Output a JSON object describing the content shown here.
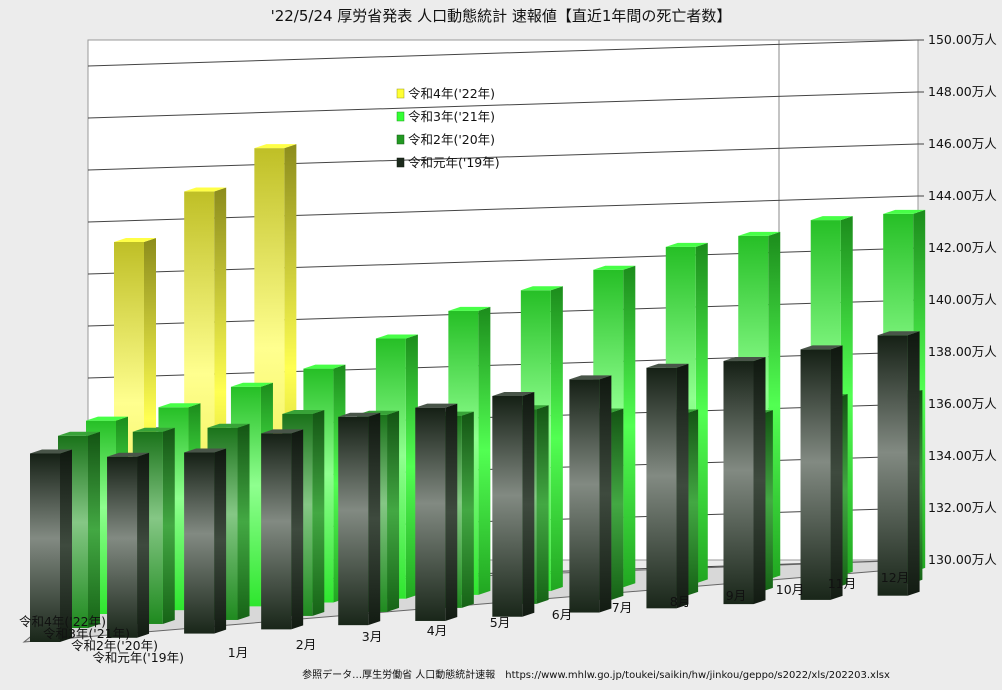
{
  "chart_data": {
    "type": "bar",
    "title": "'22/5/24 厚労省発表 人口動態統計 速報値【直近1年間の死亡者数】",
    "categories": [
      "1月",
      "2月",
      "3月",
      "4月",
      "5月",
      "6月",
      "7月",
      "8月",
      "9月",
      "10月",
      "11月",
      "12月"
    ],
    "y_tick_labels": [
      "130.00万人",
      "132.00万人",
      "134.00万人",
      "136.00万人",
      "138.00万人",
      "140.00万人",
      "142.00万人",
      "144.00万人",
      "146.00万人",
      "148.00万人",
      "150.00万人"
    ],
    "ylim": [
      130,
      150
    ],
    "y_unit": "万人",
    "grid": true,
    "legend_position": "top-center",
    "series": [
      {
        "name": "令和4年('22年)",
        "axis_label": "令和4年('22年)",
        "color": "#ffff33",
        "values": [
          145.3,
          147.3,
          149.0,
          null,
          null,
          null,
          null,
          null,
          null,
          null,
          null,
          null
        ]
      },
      {
        "name": "令和3年('21年)",
        "axis_label": "令和3年('21年)",
        "color": "#33ff33",
        "values": [
          138.1,
          138.5,
          139.2,
          139.8,
          140.9,
          141.9,
          142.6,
          143.3,
          144.1,
          144.4,
          144.9,
          145.0
        ]
      },
      {
        "name": "令和2年('20年)",
        "axis_label": "令和2年('20年)",
        "color": "#229922",
        "values": [
          137.9,
          137.9,
          137.9,
          138.3,
          138.1,
          137.9,
          138.0,
          137.7,
          137.5,
          137.3,
          137.8,
          137.8
        ]
      },
      {
        "name": "令和元年('19年)",
        "axis_label": "令和元年('19年)",
        "color": "#1c2a1c",
        "values": [
          137.6,
          137.3,
          137.3,
          137.9,
          138.4,
          138.6,
          138.9,
          139.4,
          139.7,
          139.8,
          140.1,
          140.5
        ]
      }
    ],
    "source_note": "参照データ…厚生労働省 人口動態統計速報　https://www.mhlw.go.jp/toukei/saikin/hw/jinkou/geppo/s2022/xls/202203.xlsx"
  }
}
